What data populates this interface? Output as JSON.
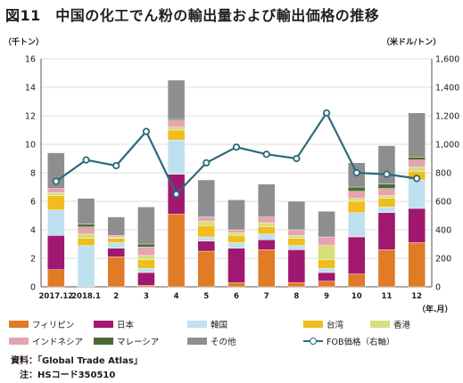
{
  "title": "図11　中国の化工でん粉の輸出量および輸出価格の推移",
  "left_unit": "（千トン）",
  "right_unit": "（米ドル/トン）",
  "x_unit": "（年.月）",
  "source": "資料：「Global Trade Atlas」",
  "note": "注：HSコード350510",
  "legend_items": [
    "フィリピン",
    "日本",
    "韓国",
    "台湾",
    "香港",
    "インドネシア",
    "マレーシア",
    "その他",
    "FOB価格（右軸）"
  ],
  "colors": {
    "フィリピン": "#e07b26",
    "日本": "#a0186f",
    "韓国": "#bfe0ef",
    "台湾": "#efbd1e",
    "香港": "#d6df7a",
    "インドネシア": "#e6a3b0",
    "マレーシア": "#4a6b34",
    "その他": "#8e8e8e",
    "FOB価格（右軸）": "#2a6b7a"
  },
  "chart_data": {
    "type": "bar",
    "stacked": true,
    "categories": [
      "2017.12",
      "2018.1",
      "2",
      "3",
      "4",
      "5",
      "6",
      "7",
      "8",
      "9",
      "10",
      "11",
      "12"
    ],
    "series": [
      {
        "name": "フィリピン",
        "values": [
          1.2,
          0.0,
          2.1,
          0.1,
          5.1,
          2.5,
          0.3,
          2.6,
          0.3,
          0.4,
          0.9,
          2.6,
          3.1
        ]
      },
      {
        "name": "日本",
        "values": [
          2.4,
          0.0,
          0.6,
          0.9,
          2.8,
          0.7,
          2.4,
          0.7,
          2.3,
          0.6,
          2.6,
          2.6,
          2.4
        ]
      },
      {
        "name": "韓国",
        "values": [
          1.8,
          2.9,
          0.4,
          0.3,
          2.4,
          0.3,
          0.4,
          0.4,
          0.3,
          0.3,
          1.7,
          0.4,
          2.0
        ]
      },
      {
        "name": "台湾",
        "values": [
          1.0,
          0.5,
          0.3,
          0.6,
          0.7,
          0.8,
          0.5,
          0.5,
          0.5,
          0.6,
          0.8,
          0.6,
          0.6
        ]
      },
      {
        "name": "香港",
        "values": [
          0.2,
          0.3,
          0.1,
          0.3,
          0.2,
          0.3,
          0.2,
          0.3,
          0.2,
          1.0,
          0.2,
          0.2,
          0.3
        ]
      },
      {
        "name": "インドネシア",
        "values": [
          0.3,
          0.5,
          0.1,
          0.6,
          0.5,
          0.3,
          0.2,
          0.4,
          0.4,
          0.6,
          0.5,
          0.5,
          0.5
        ]
      },
      {
        "name": "マレーシア",
        "values": [
          0.0,
          0.2,
          0.0,
          0.2,
          0.1,
          0.0,
          0.0,
          0.0,
          0.0,
          0.0,
          0.3,
          0.3,
          0.2
        ]
      },
      {
        "name": "その他",
        "values": [
          2.5,
          1.8,
          1.3,
          2.6,
          2.7,
          2.6,
          2.1,
          2.3,
          2.0,
          1.8,
          1.7,
          2.7,
          3.1
        ]
      }
    ],
    "line_series": {
      "name": "FOB価格（右軸）",
      "axis": "right",
      "values": [
        740,
        890,
        850,
        1090,
        650,
        870,
        980,
        930,
        900,
        1220,
        800,
        790,
        760
      ]
    },
    "ylim": [
      0,
      16
    ],
    "yticks": [
      "0",
      "2",
      "4",
      "6",
      "8",
      "10",
      "12",
      "14",
      "16"
    ],
    "y2lim": [
      0,
      1600
    ],
    "y2ticks": [
      "0",
      "200",
      "400",
      "600",
      "800",
      "1,000",
      "1,200",
      "1,400",
      "1,600"
    ],
    "grid": true,
    "legend_position": "bottom"
  }
}
